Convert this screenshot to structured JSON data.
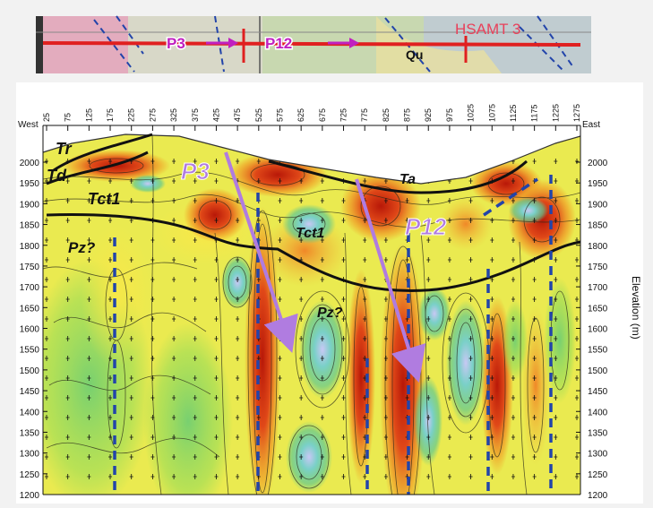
{
  "map_strip": {
    "line_title": "HSAMT 3",
    "profiles": [
      "P3",
      "P12"
    ],
    "unit_label": "Qu"
  },
  "section": {
    "west_label": "West",
    "east_label": "East",
    "station_ticks": [
      "25",
      "75",
      "125",
      "175",
      "225",
      "275",
      "325",
      "375",
      "425",
      "475",
      "525",
      "575",
      "625",
      "675",
      "725",
      "775",
      "825",
      "875",
      "925",
      "975",
      "1025",
      "1075",
      "1125",
      "1175",
      "1225",
      "1275"
    ],
    "elevation_ticks": [
      "2000",
      "1950",
      "1900",
      "1850",
      "1800",
      "1750",
      "1700",
      "1650",
      "1600",
      "1550",
      "1500",
      "1450",
      "1400",
      "1350",
      "1300",
      "1250",
      "1200"
    ],
    "elevation_axis_label": "Elevation (m)",
    "profile_labels": [
      "P3",
      "P12"
    ],
    "unit_labels": {
      "tr": "Tr",
      "td": "Td",
      "tct1_left": "Tct1",
      "tct1_mid": "Tct1",
      "ta": "Ta",
      "pz_left": "Pz?",
      "pz_mid": "Pz?"
    }
  },
  "colors": {
    "profile_arrow": "#b07ce0",
    "fault_dash": "#2244aa",
    "map_line": "#e02020",
    "high_resistivity": "#d02810",
    "low_resistivity": "#50c8a8",
    "background_field": "#ecec48"
  }
}
